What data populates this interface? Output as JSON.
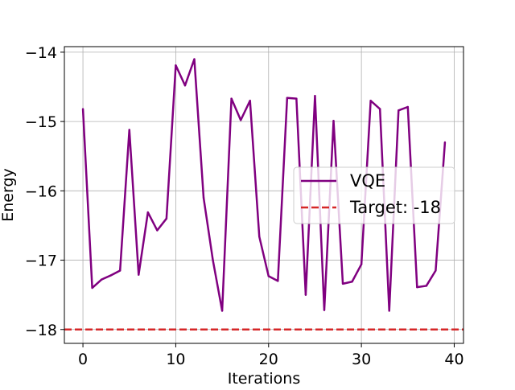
{
  "chart_data": {
    "type": "line",
    "title": "",
    "xlabel": "Iterations",
    "ylabel": "Energy",
    "xlim": [
      -2,
      41
    ],
    "ylim": [
      -18.2,
      -13.92
    ],
    "xticks": [
      0,
      10,
      20,
      30,
      40
    ],
    "yticks": [
      -18,
      -17,
      -16,
      -15,
      -14
    ],
    "xtick_labels": [
      "0",
      "10",
      "20",
      "30",
      "40"
    ],
    "ytick_labels": [
      "−18",
      "−17",
      "−16",
      "−15",
      "−14"
    ],
    "grid": true,
    "legend_position": "center-right",
    "series": [
      {
        "name": "VQE",
        "style": "solid",
        "color": "#800080",
        "x": [
          0,
          1,
          2,
          3,
          4,
          5,
          6,
          7,
          8,
          9,
          10,
          11,
          12,
          13,
          14,
          15,
          16,
          17,
          18,
          19,
          20,
          21,
          22,
          23,
          24,
          25,
          26,
          27,
          28,
          29,
          30,
          31,
          32,
          33,
          34,
          35,
          36,
          37,
          38,
          39
        ],
        "values": [
          -14.82,
          -17.4,
          -17.28,
          -17.22,
          -17.15,
          -15.12,
          -17.21,
          -16.31,
          -16.57,
          -16.4,
          -14.19,
          -14.48,
          -14.1,
          -16.1,
          -17.0,
          -17.73,
          -14.67,
          -14.98,
          -14.7,
          -16.66,
          -17.23,
          -17.3,
          -14.66,
          -14.67,
          -17.5,
          -14.63,
          -17.72,
          -14.99,
          -17.34,
          -17.31,
          -17.06,
          -14.7,
          -14.82,
          -17.73,
          -14.84,
          -14.79,
          -17.39,
          -17.37,
          -17.15,
          -15.3
        ]
      },
      {
        "name": "Target: -18",
        "style": "dashed",
        "color": "#d62728",
        "hline": -18
      }
    ]
  }
}
